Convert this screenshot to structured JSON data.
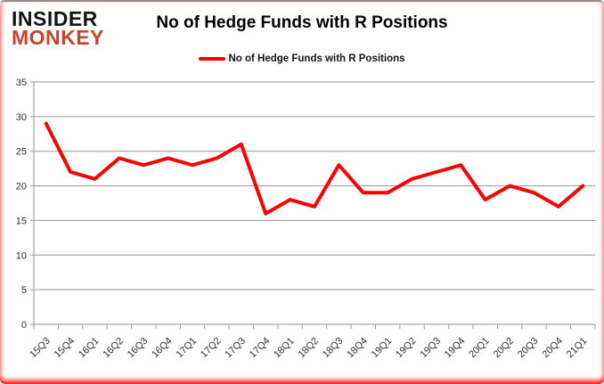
{
  "header": {
    "logo_line1": "INSIDER",
    "logo_line2": "MONKEY",
    "title": "No of Hedge Funds with R Positions"
  },
  "legend": {
    "label": "No of Hedge Funds with R Positions"
  },
  "colors": {
    "series_line": "#fe0000",
    "logo_black": "#151515",
    "logo_red": "#c7432c",
    "gridline": "#969696",
    "axis_text": "#2e2e2e",
    "frame_glow": "#ff0000",
    "frame_top_border": "#8e8e8e"
  },
  "chart_data": {
    "type": "line",
    "title": "No of Hedge Funds with R Positions",
    "categories": [
      "15Q3",
      "15Q4",
      "16Q1",
      "16Q2",
      "16Q3",
      "16Q4",
      "17Q1",
      "17Q2",
      "17Q3",
      "17Q4",
      "18Q1",
      "18Q2",
      "18Q3",
      "18Q4",
      "19Q1",
      "19Q2",
      "19Q3",
      "19Q4",
      "20Q1",
      "20Q2",
      "20Q3",
      "20Q4",
      "21Q1"
    ],
    "series": [
      {
        "name": "No of Hedge Funds with R Positions",
        "color": "#fe0000",
        "values": [
          29,
          22,
          21,
          24,
          23,
          24,
          23,
          24,
          26,
          16,
          18,
          17,
          23,
          19,
          19,
          21,
          22,
          23,
          18,
          20,
          19,
          17,
          20
        ]
      }
    ],
    "xlabel": "",
    "ylabel": "",
    "ylim": [
      0,
      35
    ],
    "ytick_interval": 5,
    "grid": true,
    "legend_position": "top-center",
    "x_label_rotation_deg": 45
  }
}
